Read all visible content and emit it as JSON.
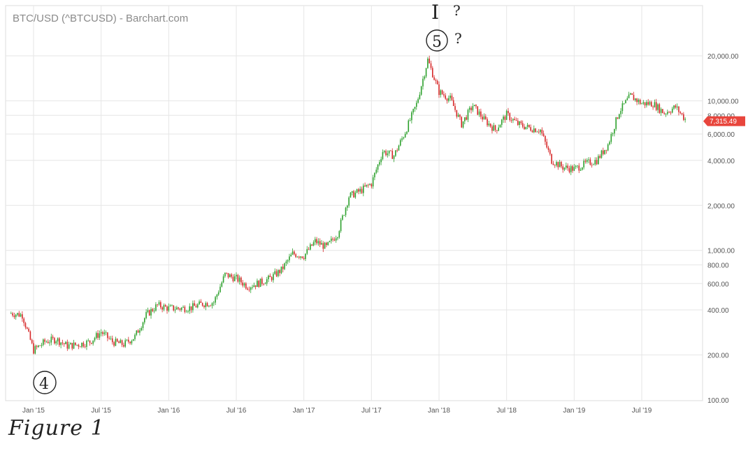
{
  "header": {
    "title": "BTC/USD (^BTCUSD) - Barchart.com"
  },
  "annotations": {
    "figure_label": "Figure 1",
    "wave_top_roman": "I",
    "wave_top_roman_q": "?",
    "wave_5": "5",
    "wave_5_q": "?",
    "wave_4": "4"
  },
  "colors": {
    "up": "#2ca02c",
    "down": "#d62728",
    "last_price_bg": "#e8453c",
    "grid": "#e6e6e6"
  },
  "chart_data": {
    "type": "line",
    "title": "BTC/USD (^BTCUSD) - Barchart.com",
    "xlabel": "",
    "ylabel": "",
    "y_scale": "log",
    "ylim": [
      100,
      32000
    ],
    "xlim": [
      "2014-11",
      "2019-12"
    ],
    "last_price": "7,315.49",
    "last_price_value": 7315.49,
    "x_tick_labels": [
      "Jan '15",
      "Jul '15",
      "Jan '16",
      "Jul '16",
      "Jan '17",
      "Jul '17",
      "Jan '18",
      "Jul '18",
      "Jan '19",
      "Jul '19"
    ],
    "x_tick_dates": [
      "2015-01",
      "2015-07",
      "2016-01",
      "2016-07",
      "2017-01",
      "2017-07",
      "2018-01",
      "2018-07",
      "2019-01",
      "2019-07"
    ],
    "y_ticks": [
      {
        "value": 20000,
        "label": "20,000.00"
      },
      {
        "value": 10000,
        "label": "10,000.00"
      },
      {
        "value": 8000,
        "label": "8,000.00"
      },
      {
        "value": 6000,
        "label": "6,000.00"
      },
      {
        "value": 4000,
        "label": "4,000.00"
      },
      {
        "value": 2000,
        "label": "2,000.00"
      },
      {
        "value": 1000,
        "label": "1,000.00"
      },
      {
        "value": 800,
        "label": "800.00"
      },
      {
        "value": 600,
        "label": "600.00"
      },
      {
        "value": 400,
        "label": "400.00"
      },
      {
        "value": 200,
        "label": "200.00"
      },
      {
        "value": 100,
        "label": "100.00"
      }
    ],
    "series": [
      {
        "x": [
          "2014-11",
          "2014-12",
          "2015-01",
          "2015-02",
          "2015-03",
          "2015-04",
          "2015-05",
          "2015-06",
          "2015-07",
          "2015-08",
          "2015-09",
          "2015-10",
          "2015-11",
          "2015-12",
          "2016-01",
          "2016-02",
          "2016-03",
          "2016-04",
          "2016-05",
          "2016-06",
          "2016-07",
          "2016-08",
          "2016-09",
          "2016-10",
          "2016-11",
          "2016-12",
          "2017-01",
          "2017-02",
          "2017-03",
          "2017-04",
          "2017-05",
          "2017-06",
          "2017-07",
          "2017-08",
          "2017-09",
          "2017-10",
          "2017-11",
          "2017-12",
          "2018-01",
          "2018-02",
          "2018-03",
          "2018-04",
          "2018-05",
          "2018-06",
          "2018-07",
          "2018-08",
          "2018-09",
          "2018-10",
          "2018-11",
          "2018-12",
          "2019-01",
          "2019-02",
          "2019-03",
          "2019-04",
          "2019-05",
          "2019-06",
          "2019-07",
          "2019-08",
          "2019-09",
          "2019-10",
          "2019-11"
        ],
        "values": [
          380,
          370,
          215,
          245,
          255,
          230,
          235,
          245,
          285,
          245,
          235,
          265,
          370,
          430,
          410,
          410,
          415,
          440,
          450,
          690,
          650,
          575,
          605,
          650,
          740,
          950,
          920,
          1150,
          1050,
          1300,
          2300,
          2500,
          2800,
          4600,
          4300,
          6200,
          9500,
          18800,
          11500,
          10300,
          7000,
          9300,
          7500,
          6400,
          8100,
          7000,
          6600,
          6400,
          4000,
          3600,
          3500,
          3800,
          4000,
          5100,
          8500,
          10800,
          9600,
          9600,
          8300,
          9100,
          7315
        ]
      }
    ]
  }
}
